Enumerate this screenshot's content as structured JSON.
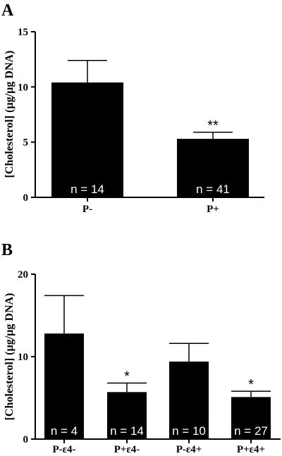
{
  "chart_data": [
    {
      "type": "bar",
      "panel": "A",
      "ylabel": "[Cholesterol] (µg/µg DNA)",
      "ylim": [
        0,
        15
      ],
      "yticks": [
        0,
        5,
        10,
        15
      ],
      "categories": [
        "P-",
        "P+"
      ],
      "values": [
        10.4,
        5.3
      ],
      "errors": [
        2.0,
        0.6
      ],
      "annotations": [
        "",
        "**"
      ],
      "n_labels": [
        "n = 14",
        "n = 41"
      ]
    },
    {
      "type": "bar",
      "panel": "B",
      "ylabel": "[Cholesterol] (µg/µg DNA)",
      "ylim": [
        0,
        20
      ],
      "yticks": [
        0,
        10,
        20
      ],
      "categories": [
        "P-ε4-",
        "P+ε4-",
        "P-ε4+",
        "P+ε4+"
      ],
      "values": [
        12.8,
        5.7,
        9.4,
        5.1
      ],
      "errors": [
        4.6,
        1.1,
        2.2,
        0.7
      ],
      "annotations": [
        "",
        "*",
        "",
        "*"
      ],
      "n_labels": [
        "n = 4",
        "n = 14",
        "n = 10",
        "n = 27"
      ]
    }
  ],
  "style": {
    "bar_color": "#000000",
    "axis_color": "#000000",
    "label_color": "#ffffff"
  }
}
